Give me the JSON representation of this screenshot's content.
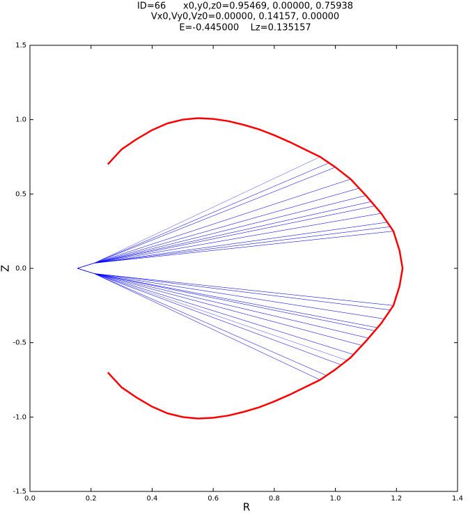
{
  "chart_data": {
    "type": "line",
    "title": [
      "ID=66      x0,y0,z0=0.95469, 0.00000, 0.75938",
      "Vx0,Vy0,Vz0=0.00000, 0.14157, 0.00000",
      "E=-0.445000    Lz=0.135157"
    ],
    "xlabel": "R",
    "ylabel": "Z",
    "xlim": [
      0,
      1.4
    ],
    "ylim": [
      -1.5,
      1.5
    ],
    "xticks": [
      {
        "value": 0,
        "label": "0.0"
      },
      0.2,
      0.4,
      0.6,
      0.8,
      {
        "value": 1,
        "label": "1.0"
      },
      1.2,
      1.4
    ],
    "yticks": [
      -1.5,
      {
        "value": -1,
        "label": "-1.0"
      },
      -0.5,
      {
        "value": 0,
        "label": "0.0"
      },
      0.5,
      {
        "value": 1,
        "label": "1.0"
      },
      1.5
    ],
    "series": [
      {
        "color": "#0000ff",
        "x": [
          0.95,
          0.21,
          0.155,
          0.21,
          1.19,
          0.21,
          0.155,
          0.21,
          1.19,
          0.21,
          0.155,
          0.21,
          0.95,
          0.21,
          0.155,
          0.21,
          1.0,
          0.21,
          0.155,
          0.21,
          1.16,
          0.21,
          0.155,
          0.21,
          1.17,
          0.21,
          0.155,
          0.21,
          1.02,
          0.21,
          0.155,
          0.21,
          1.05,
          0.21,
          0.155,
          0.21,
          1.14,
          0.21,
          0.155,
          0.21,
          1.15,
          0.21,
          0.155,
          0.21,
          1.06,
          0.21,
          0.155,
          0.21,
          1.08,
          0.21,
          0.155,
          0.21,
          1.11,
          0.21,
          0.155,
          0.21,
          1.13,
          0.21,
          0.155,
          0.21,
          1.09,
          0.21,
          0.155,
          0.21,
          1.1,
          0.21,
          0.155,
          0.21,
          1.18,
          0.21,
          0.155,
          0.21,
          1.18,
          0.21,
          0.155,
          0.21,
          0.97,
          0.21,
          0.155,
          0.21,
          0.98,
          0.21,
          0.155,
          0.21,
          1.13,
          0.21,
          0.155,
          0.21,
          1.12,
          0.21,
          0.155,
          0.21,
          1.04
        ],
        "y": [
          0.75,
          0.035,
          0,
          -0.035,
          -0.25,
          -0.035,
          0,
          0.035,
          0.25,
          0.035,
          0,
          -0.035,
          -0.75,
          -0.035,
          0,
          0.035,
          0.68,
          0.035,
          0,
          -0.035,
          -0.34,
          -0.035,
          0,
          0.035,
          0.31,
          0.035,
          0,
          -0.035,
          -0.65,
          -0.035,
          0,
          0.035,
          0.6,
          0.035,
          0,
          -0.035,
          -0.4,
          -0.035,
          0,
          0.035,
          0.37,
          0.035,
          0,
          -0.035,
          -0.58,
          -0.035,
          0,
          0.035,
          0.54,
          0.035,
          0,
          -0.035,
          -0.47,
          -0.035,
          0,
          0.035,
          0.42,
          0.035,
          0,
          -0.035,
          -0.52,
          -0.035,
          0,
          0.035,
          0.49,
          0.035,
          0,
          -0.035,
          -0.28,
          -0.035,
          0,
          0.035,
          0.28,
          0.035,
          0,
          -0.035,
          -0.72,
          -0.035,
          0,
          0.035,
          0.71,
          0.035,
          0,
          -0.035,
          -0.42,
          -0.035,
          0,
          0.035,
          0.45,
          0.035,
          0,
          -0.035,
          -0.62
        ]
      },
      {
        "color": "#ff0000",
        "x": [
          0.255,
          0.3,
          0.35,
          0.4,
          0.45,
          0.5,
          0.55,
          0.6,
          0.65,
          0.7,
          0.75,
          0.8,
          0.85,
          0.9,
          0.95,
          1.0,
          1.05,
          1.1,
          1.15,
          1.19,
          1.21,
          1.22,
          1.21,
          1.19,
          1.15,
          1.1,
          1.05,
          1.0,
          0.95,
          0.9,
          0.85,
          0.8,
          0.75,
          0.7,
          0.65,
          0.6,
          0.55,
          0.5,
          0.45,
          0.4,
          0.35,
          0.3,
          0.255
        ],
        "y": [
          0.7,
          0.8,
          0.87,
          0.93,
          0.975,
          1.0,
          1.01,
          1.005,
          0.99,
          0.965,
          0.935,
          0.895,
          0.85,
          0.8,
          0.75,
          0.68,
          0.6,
          0.49,
          0.37,
          0.25,
          0.12,
          0,
          -0.12,
          -0.25,
          -0.37,
          -0.49,
          -0.6,
          -0.68,
          -0.75,
          -0.8,
          -0.85,
          -0.895,
          -0.935,
          -0.965,
          -0.99,
          -1.005,
          -1.01,
          -1.0,
          -0.975,
          -0.93,
          -0.87,
          -0.8,
          -0.7
        ]
      }
    ]
  }
}
